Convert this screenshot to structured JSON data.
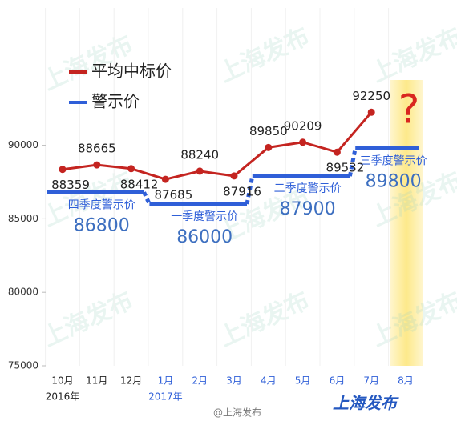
{
  "chart_data": {
    "type": "line",
    "categories": [
      "10月",
      "11月",
      "12月",
      "1月",
      "2月",
      "3月",
      "4月",
      "5月",
      "6月",
      "7月",
      "8月"
    ],
    "years": [
      "2016年",
      "2017年"
    ],
    "series": [
      {
        "name": "平均中标价",
        "color": "#c42420",
        "values": [
          88359,
          88665,
          88412,
          87685,
          88240,
          87916,
          89850,
          90209,
          89532,
          92250,
          null
        ]
      },
      {
        "name": "警示价",
        "color": "#2f5fd8",
        "values": [
          86800,
          86800,
          86800,
          86000,
          86000,
          86000,
          87900,
          87900,
          87900,
          89800,
          89800
        ]
      }
    ],
    "quarter_labels": [
      "四季度警示价",
      "一季度警示价",
      "二季度警示价",
      "三季度警示价"
    ],
    "annotation": "?",
    "ylim": [
      75000,
      100000
    ],
    "yticks": [
      75000,
      80000,
      85000,
      90000
    ],
    "watermark": "上海发布",
    "credit": "@上海发布",
    "brand": "上海发布"
  }
}
